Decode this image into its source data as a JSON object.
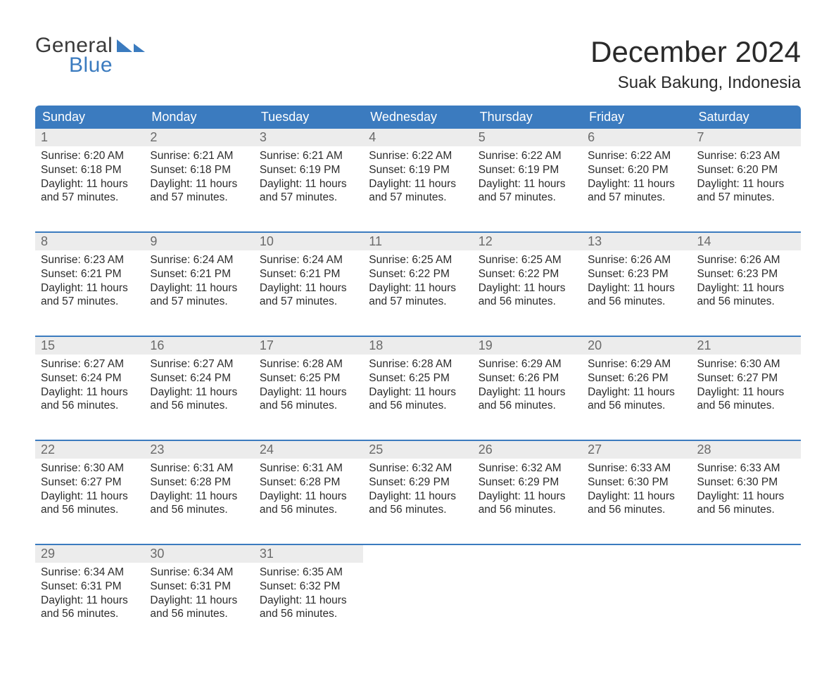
{
  "brand": {
    "line1": "General",
    "line2": "Blue",
    "accent_color": "#3b7bbf"
  },
  "header": {
    "month_title": "December 2024",
    "location": "Suak Bakung, Indonesia"
  },
  "colors": {
    "header_bg": "#3b7bbf",
    "header_text": "#ffffff",
    "daynum_bg": "#ececec",
    "daynum_text": "#6a6a6a",
    "row_line": "#3b7bbf",
    "body_text": "#2c2c2c",
    "page_bg": "#ffffff"
  },
  "typography": {
    "month_title_pt": 42,
    "location_pt": 24,
    "weekday_pt": 18,
    "daynum_pt": 18,
    "body_pt": 15
  },
  "weekdays": [
    "Sunday",
    "Monday",
    "Tuesday",
    "Wednesday",
    "Thursday",
    "Friday",
    "Saturday"
  ],
  "weeks": [
    [
      {
        "n": "1",
        "sunrise": "Sunrise: 6:20 AM",
        "sunset": "Sunset: 6:18 PM",
        "d1": "Daylight: 11 hours",
        "d2": "and 57 minutes."
      },
      {
        "n": "2",
        "sunrise": "Sunrise: 6:21 AM",
        "sunset": "Sunset: 6:18 PM",
        "d1": "Daylight: 11 hours",
        "d2": "and 57 minutes."
      },
      {
        "n": "3",
        "sunrise": "Sunrise: 6:21 AM",
        "sunset": "Sunset: 6:19 PM",
        "d1": "Daylight: 11 hours",
        "d2": "and 57 minutes."
      },
      {
        "n": "4",
        "sunrise": "Sunrise: 6:22 AM",
        "sunset": "Sunset: 6:19 PM",
        "d1": "Daylight: 11 hours",
        "d2": "and 57 minutes."
      },
      {
        "n": "5",
        "sunrise": "Sunrise: 6:22 AM",
        "sunset": "Sunset: 6:19 PM",
        "d1": "Daylight: 11 hours",
        "d2": "and 57 minutes."
      },
      {
        "n": "6",
        "sunrise": "Sunrise: 6:22 AM",
        "sunset": "Sunset: 6:20 PM",
        "d1": "Daylight: 11 hours",
        "d2": "and 57 minutes."
      },
      {
        "n": "7",
        "sunrise": "Sunrise: 6:23 AM",
        "sunset": "Sunset: 6:20 PM",
        "d1": "Daylight: 11 hours",
        "d2": "and 57 minutes."
      }
    ],
    [
      {
        "n": "8",
        "sunrise": "Sunrise: 6:23 AM",
        "sunset": "Sunset: 6:21 PM",
        "d1": "Daylight: 11 hours",
        "d2": "and 57 minutes."
      },
      {
        "n": "9",
        "sunrise": "Sunrise: 6:24 AM",
        "sunset": "Sunset: 6:21 PM",
        "d1": "Daylight: 11 hours",
        "d2": "and 57 minutes."
      },
      {
        "n": "10",
        "sunrise": "Sunrise: 6:24 AM",
        "sunset": "Sunset: 6:21 PM",
        "d1": "Daylight: 11 hours",
        "d2": "and 57 minutes."
      },
      {
        "n": "11",
        "sunrise": "Sunrise: 6:25 AM",
        "sunset": "Sunset: 6:22 PM",
        "d1": "Daylight: 11 hours",
        "d2": "and 57 minutes."
      },
      {
        "n": "12",
        "sunrise": "Sunrise: 6:25 AM",
        "sunset": "Sunset: 6:22 PM",
        "d1": "Daylight: 11 hours",
        "d2": "and 56 minutes."
      },
      {
        "n": "13",
        "sunrise": "Sunrise: 6:26 AM",
        "sunset": "Sunset: 6:23 PM",
        "d1": "Daylight: 11 hours",
        "d2": "and 56 minutes."
      },
      {
        "n": "14",
        "sunrise": "Sunrise: 6:26 AM",
        "sunset": "Sunset: 6:23 PM",
        "d1": "Daylight: 11 hours",
        "d2": "and 56 minutes."
      }
    ],
    [
      {
        "n": "15",
        "sunrise": "Sunrise: 6:27 AM",
        "sunset": "Sunset: 6:24 PM",
        "d1": "Daylight: 11 hours",
        "d2": "and 56 minutes."
      },
      {
        "n": "16",
        "sunrise": "Sunrise: 6:27 AM",
        "sunset": "Sunset: 6:24 PM",
        "d1": "Daylight: 11 hours",
        "d2": "and 56 minutes."
      },
      {
        "n": "17",
        "sunrise": "Sunrise: 6:28 AM",
        "sunset": "Sunset: 6:25 PM",
        "d1": "Daylight: 11 hours",
        "d2": "and 56 minutes."
      },
      {
        "n": "18",
        "sunrise": "Sunrise: 6:28 AM",
        "sunset": "Sunset: 6:25 PM",
        "d1": "Daylight: 11 hours",
        "d2": "and 56 minutes."
      },
      {
        "n": "19",
        "sunrise": "Sunrise: 6:29 AM",
        "sunset": "Sunset: 6:26 PM",
        "d1": "Daylight: 11 hours",
        "d2": "and 56 minutes."
      },
      {
        "n": "20",
        "sunrise": "Sunrise: 6:29 AM",
        "sunset": "Sunset: 6:26 PM",
        "d1": "Daylight: 11 hours",
        "d2": "and 56 minutes."
      },
      {
        "n": "21",
        "sunrise": "Sunrise: 6:30 AM",
        "sunset": "Sunset: 6:27 PM",
        "d1": "Daylight: 11 hours",
        "d2": "and 56 minutes."
      }
    ],
    [
      {
        "n": "22",
        "sunrise": "Sunrise: 6:30 AM",
        "sunset": "Sunset: 6:27 PM",
        "d1": "Daylight: 11 hours",
        "d2": "and 56 minutes."
      },
      {
        "n": "23",
        "sunrise": "Sunrise: 6:31 AM",
        "sunset": "Sunset: 6:28 PM",
        "d1": "Daylight: 11 hours",
        "d2": "and 56 minutes."
      },
      {
        "n": "24",
        "sunrise": "Sunrise: 6:31 AM",
        "sunset": "Sunset: 6:28 PM",
        "d1": "Daylight: 11 hours",
        "d2": "and 56 minutes."
      },
      {
        "n": "25",
        "sunrise": "Sunrise: 6:32 AM",
        "sunset": "Sunset: 6:29 PM",
        "d1": "Daylight: 11 hours",
        "d2": "and 56 minutes."
      },
      {
        "n": "26",
        "sunrise": "Sunrise: 6:32 AM",
        "sunset": "Sunset: 6:29 PM",
        "d1": "Daylight: 11 hours",
        "d2": "and 56 minutes."
      },
      {
        "n": "27",
        "sunrise": "Sunrise: 6:33 AM",
        "sunset": "Sunset: 6:30 PM",
        "d1": "Daylight: 11 hours",
        "d2": "and 56 minutes."
      },
      {
        "n": "28",
        "sunrise": "Sunrise: 6:33 AM",
        "sunset": "Sunset: 6:30 PM",
        "d1": "Daylight: 11 hours",
        "d2": "and 56 minutes."
      }
    ],
    [
      {
        "n": "29",
        "sunrise": "Sunrise: 6:34 AM",
        "sunset": "Sunset: 6:31 PM",
        "d1": "Daylight: 11 hours",
        "d2": "and 56 minutes."
      },
      {
        "n": "30",
        "sunrise": "Sunrise: 6:34 AM",
        "sunset": "Sunset: 6:31 PM",
        "d1": "Daylight: 11 hours",
        "d2": "and 56 minutes."
      },
      {
        "n": "31",
        "sunrise": "Sunrise: 6:35 AM",
        "sunset": "Sunset: 6:32 PM",
        "d1": "Daylight: 11 hours",
        "d2": "and 56 minutes."
      },
      null,
      null,
      null,
      null
    ]
  ]
}
